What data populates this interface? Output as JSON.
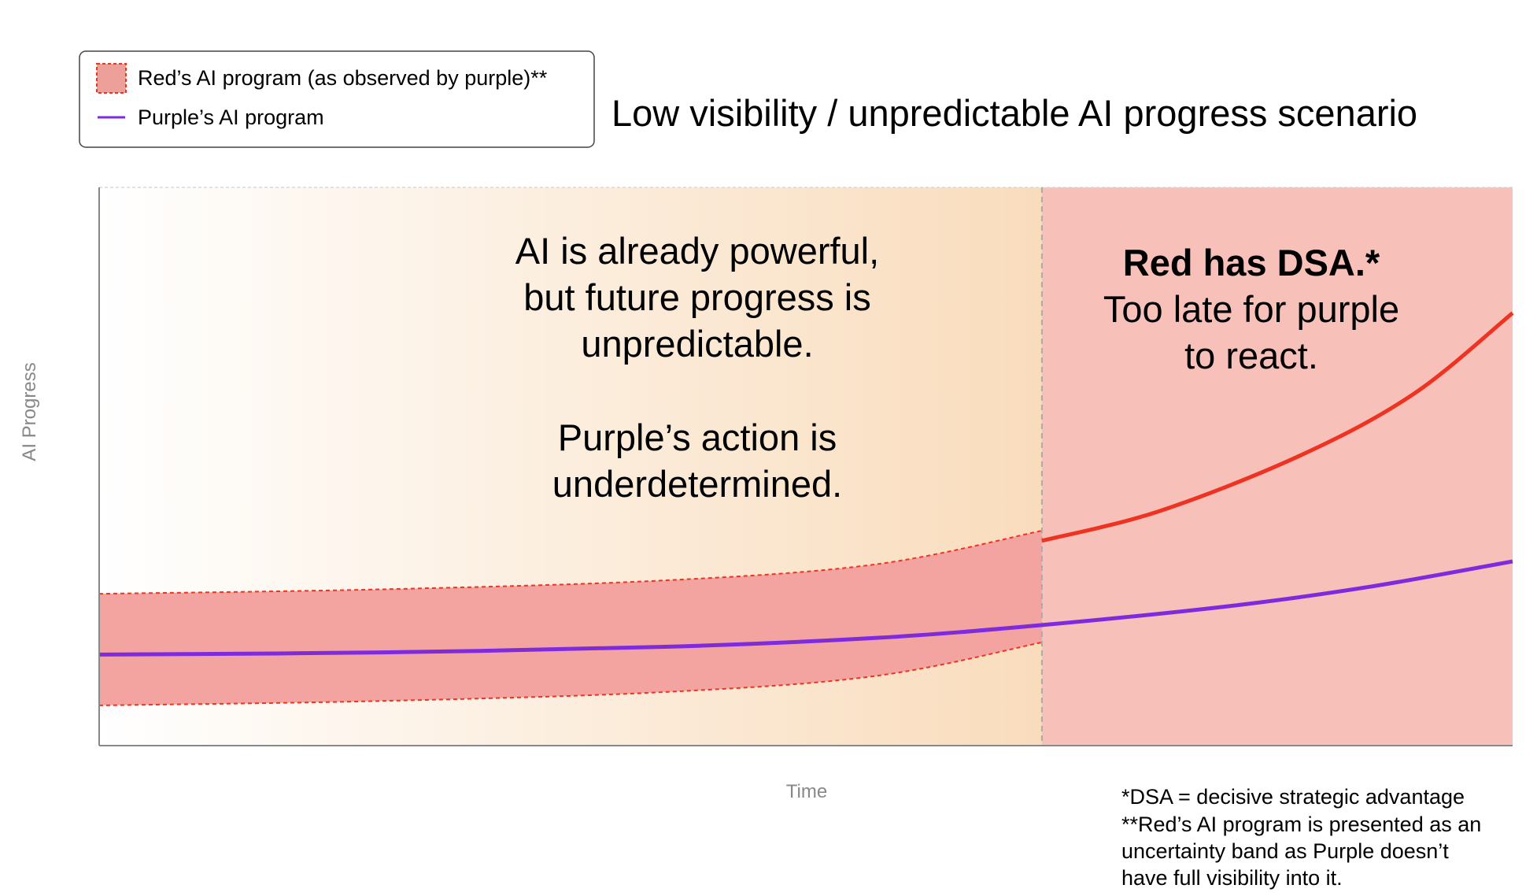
{
  "chart_data": {
    "type": "line",
    "title": "Low visibility / unpredictable AI progress scenario",
    "xlabel": "Time",
    "ylabel": "AI Progress",
    "xlim": [
      0,
      1
    ],
    "ylim": [
      0,
      1
    ],
    "grid": false,
    "legend_position": "top-left",
    "legend": [
      {
        "label": "Red’s AI program (as observed by purple)**",
        "kind": "band",
        "color": "#f4a09a",
        "border": "#ee3322"
      },
      {
        "label": "Purple’s AI program",
        "kind": "line",
        "color": "#7e2be0"
      }
    ],
    "divider_x": 0.667,
    "regions": [
      {
        "name": "uncertain",
        "from": 0,
        "to": 0.667,
        "color_start": "#ffffff",
        "color_end": "#f9dcbc"
      },
      {
        "name": "dsa",
        "from": 0.667,
        "to": 1,
        "color": "#f7c0b9"
      }
    ],
    "series": [
      {
        "name": "Purple’s AI program",
        "color": "#7e2be0",
        "points": [
          [
            0,
            0.163
          ],
          [
            0.2,
            0.167
          ],
          [
            0.4,
            0.177
          ],
          [
            0.55,
            0.193
          ],
          [
            0.667,
            0.216
          ],
          [
            0.8,
            0.25
          ],
          [
            0.9,
            0.285
          ],
          [
            1,
            0.33
          ]
        ]
      },
      {
        "name": "Red’s AI program (band upper)",
        "color": "#ee3322",
        "points": [
          [
            0,
            0.272
          ],
          [
            0.2,
            0.28
          ],
          [
            0.4,
            0.296
          ],
          [
            0.55,
            0.325
          ],
          [
            0.667,
            0.385
          ]
        ]
      },
      {
        "name": "Red’s AI program (band lower)",
        "color": "#ee3322",
        "points": [
          [
            0,
            0.072
          ],
          [
            0.2,
            0.08
          ],
          [
            0.4,
            0.096
          ],
          [
            0.55,
            0.125
          ],
          [
            0.667,
            0.185
          ]
        ]
      },
      {
        "name": "Red’s AI program (after DSA)",
        "color": "#ee3322",
        "points": [
          [
            0.667,
            0.367
          ],
          [
            0.75,
            0.42
          ],
          [
            0.85,
            0.52
          ],
          [
            0.93,
            0.63
          ],
          [
            1,
            0.775
          ]
        ]
      }
    ],
    "annotations": {
      "left": [
        "AI is already powerful,",
        "but future progress is",
        "unpredictable.",
        "",
        "Purple’s action is",
        "underdetermined."
      ],
      "right_bold": "Red has DSA.*",
      "right": [
        "Too late for purple",
        "to react."
      ],
      "footnotes": [
        "*DSA = decisive strategic advantage",
        "**Red’s AI program is presented as an",
        "uncertainty band as Purple doesn’t",
        "have full visibility into it."
      ]
    }
  }
}
